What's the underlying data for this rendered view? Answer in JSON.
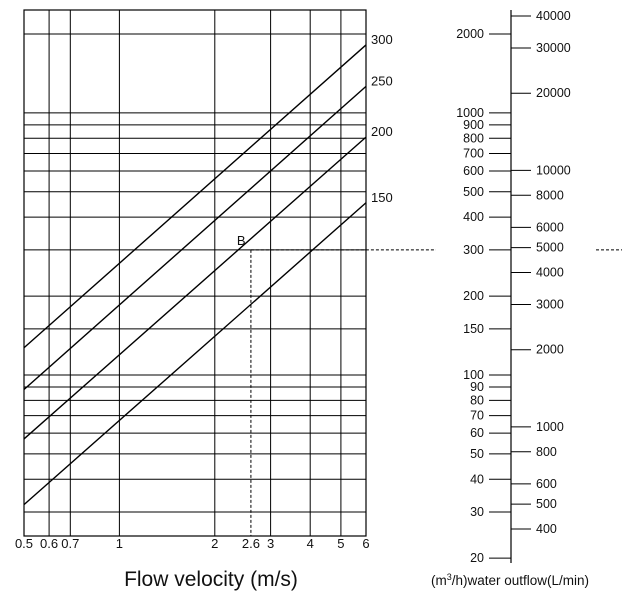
{
  "chart_data": {
    "type": "line",
    "xlabel": "Flow velocity  (m/s)",
    "x_ticks": [
      {
        "value": 0.5,
        "label": "0.5"
      },
      {
        "value": 0.6,
        "label": "0.6"
      },
      {
        "value": 0.7,
        "label": "0.7"
      },
      {
        "value": 1,
        "label": "1"
      },
      {
        "value": 2,
        "label": "2"
      },
      {
        "value": 2.6,
        "label": "2.6"
      },
      {
        "value": 3,
        "label": "3"
      },
      {
        "value": 4,
        "label": "4"
      },
      {
        "value": 5,
        "label": "5"
      },
      {
        "value": 6,
        "label": "6"
      }
    ],
    "x_scale": "log",
    "xlim": [
      0.5,
      6
    ],
    "y_scale": "log",
    "ylim": [
      20,
      2500
    ],
    "grid": true,
    "series": [
      {
        "name": "300",
        "x": [
          0.5,
          6
        ],
        "y": [
          127,
          1817
        ]
      },
      {
        "name": "250",
        "x": [
          0.5,
          6
        ],
        "y": [
          88,
          1262
        ]
      },
      {
        "name": "200",
        "x": [
          0.5,
          6
        ],
        "y": [
          57,
          808
        ]
      },
      {
        "name": "150",
        "x": [
          0.5,
          6
        ],
        "y": [
          32,
          454
        ]
      }
    ],
    "annotation": {
      "label": "B",
      "x": 2.6,
      "y": 300
    },
    "scale_left": {
      "values": [
        2000,
        1000,
        900,
        800,
        700,
        600,
        500,
        400,
        300,
        200,
        150,
        100,
        90,
        80,
        70,
        60,
        50,
        40,
        30,
        20
      ],
      "labels": [
        "2000",
        "1000",
        "900",
        "800",
        "700",
        "600",
        "500",
        "400",
        "300",
        "200",
        "150",
        "100",
        "90",
        "80",
        "70",
        "60",
        "50",
        "40",
        "30",
        "20"
      ]
    },
    "scale_right": {
      "values": [
        40000,
        30000,
        20000,
        10000,
        8000,
        6000,
        5000,
        4000,
        3000,
        2000,
        1000,
        800,
        600,
        500,
        400
      ],
      "labels": [
        "40000",
        "30000",
        "20000",
        "10000",
        "8000",
        "6000",
        "5000",
        "4000",
        "3000",
        "2000",
        "1000",
        "800",
        "600",
        "500",
        "400"
      ]
    },
    "scale_caption": "(m³/h)water  outflow(L/min)",
    "scale_caption_parts": {
      "pre": "(m",
      "sup": "3",
      "post": "/h)water  outflow(L/min)"
    }
  }
}
